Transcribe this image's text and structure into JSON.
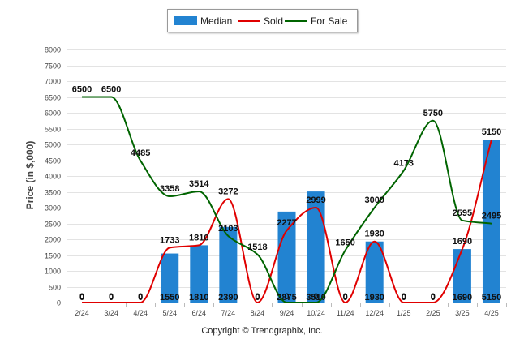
{
  "legend": {
    "median_label": "Median",
    "sold_label": "Sold",
    "for_sale_label": "For Sale"
  },
  "colors": {
    "median": "#2283d1",
    "sold": "#e00000",
    "for_sale": "#006400"
  },
  "copyright": "Copyright © Trendgraphix, Inc.",
  "chart_data": {
    "type": "bar",
    "ylabel": "Price (in $,000)",
    "ylim": [
      0,
      8000
    ],
    "yticks": [
      0,
      500,
      1000,
      1500,
      2000,
      2500,
      3000,
      3500,
      4000,
      4500,
      5000,
      5500,
      6000,
      6500,
      7000,
      7500,
      8000
    ],
    "grid": true,
    "legend_position": "top-center",
    "categories": [
      "2/24",
      "3/24",
      "4/24",
      "5/24",
      "6/24",
      "7/24",
      "8/24",
      "9/24",
      "10/24",
      "11/24",
      "12/24",
      "1/25",
      "2/25",
      "3/25",
      "4/25"
    ],
    "series": [
      {
        "name": "Median",
        "kind": "bar",
        "values": [
          0,
          0,
          0,
          1550,
          1810,
          2390,
          0,
          2875,
          3510,
          0,
          1930,
          0,
          0,
          1690,
          5150
        ]
      },
      {
        "name": "Sold",
        "kind": "line",
        "values": [
          0,
          0,
          0,
          1733,
          1810,
          3272,
          0,
          2277,
          2999,
          0,
          1930,
          0,
          0,
          1690,
          5150
        ]
      },
      {
        "name": "For Sale",
        "kind": "line",
        "values": [
          6500,
          6500,
          4485,
          3358,
          3514,
          2103,
          1518,
          0,
          0,
          1650,
          3000,
          4173,
          5750,
          2595,
          2495
        ]
      }
    ],
    "bar_labels": [
      "0",
      "0",
      "0",
      "1550",
      "1810",
      "2390",
      "0",
      "2875",
      "3510",
      "0",
      "1930",
      "0",
      "0",
      "1690",
      "5150"
    ],
    "point_labels": [
      {
        "category": "2/24",
        "value": 6500,
        "text": "6500"
      },
      {
        "category": "3/24",
        "value": 6500,
        "text": "6500"
      },
      {
        "category": "4/24",
        "value": 4485,
        "text": "4485"
      },
      {
        "category": "5/24",
        "value": 3358,
        "text": "3358"
      },
      {
        "category": "6/24",
        "value": 3514,
        "text": "3514"
      },
      {
        "category": "7/24",
        "value": 2103,
        "text": "2103"
      },
      {
        "category": "8/24",
        "value": 1518,
        "text": "1518"
      },
      {
        "category": "11/24",
        "value": 1650,
        "text": "1650"
      },
      {
        "category": "12/24",
        "value": 3000,
        "text": "3000"
      },
      {
        "category": "1/25",
        "value": 4173,
        "text": "4173"
      },
      {
        "category": "2/25",
        "value": 5750,
        "text": "5750"
      },
      {
        "category": "3/25",
        "value": 2595,
        "text": "2595"
      },
      {
        "category": "4/25",
        "value": 2495,
        "text": "2495"
      },
      {
        "category": "5/24",
        "value": 1733,
        "text": "1733"
      },
      {
        "category": "6/24",
        "value": 1810,
        "text": "1810"
      },
      {
        "category": "7/24",
        "value": 3272,
        "text": "3272"
      },
      {
        "category": "9/24",
        "value": 2277,
        "text": "2277"
      },
      {
        "category": "10/24",
        "value": 2999,
        "text": "2999"
      },
      {
        "category": "12/24",
        "value": 1930,
        "text": "1930"
      },
      {
        "category": "3/25",
        "value": 1690,
        "text": "1690"
      },
      {
        "category": "4/25",
        "value": 5150,
        "text": "5150"
      },
      {
        "category": "2/24",
        "value": 0,
        "text": "0"
      },
      {
        "category": "3/24",
        "value": 0,
        "text": "0"
      },
      {
        "category": "4/24",
        "value": 0,
        "text": "0"
      },
      {
        "category": "8/24",
        "value": 0,
        "text": "0"
      },
      {
        "category": "11/24",
        "value": 0,
        "text": "0"
      },
      {
        "category": "1/25",
        "value": 0,
        "text": "0"
      },
      {
        "category": "2/25",
        "value": 0,
        "text": "0"
      },
      {
        "category": "9/24",
        "value": 0,
        "text": "0"
      },
      {
        "category": "10/24",
        "value": 0,
        "text": "0"
      }
    ]
  }
}
